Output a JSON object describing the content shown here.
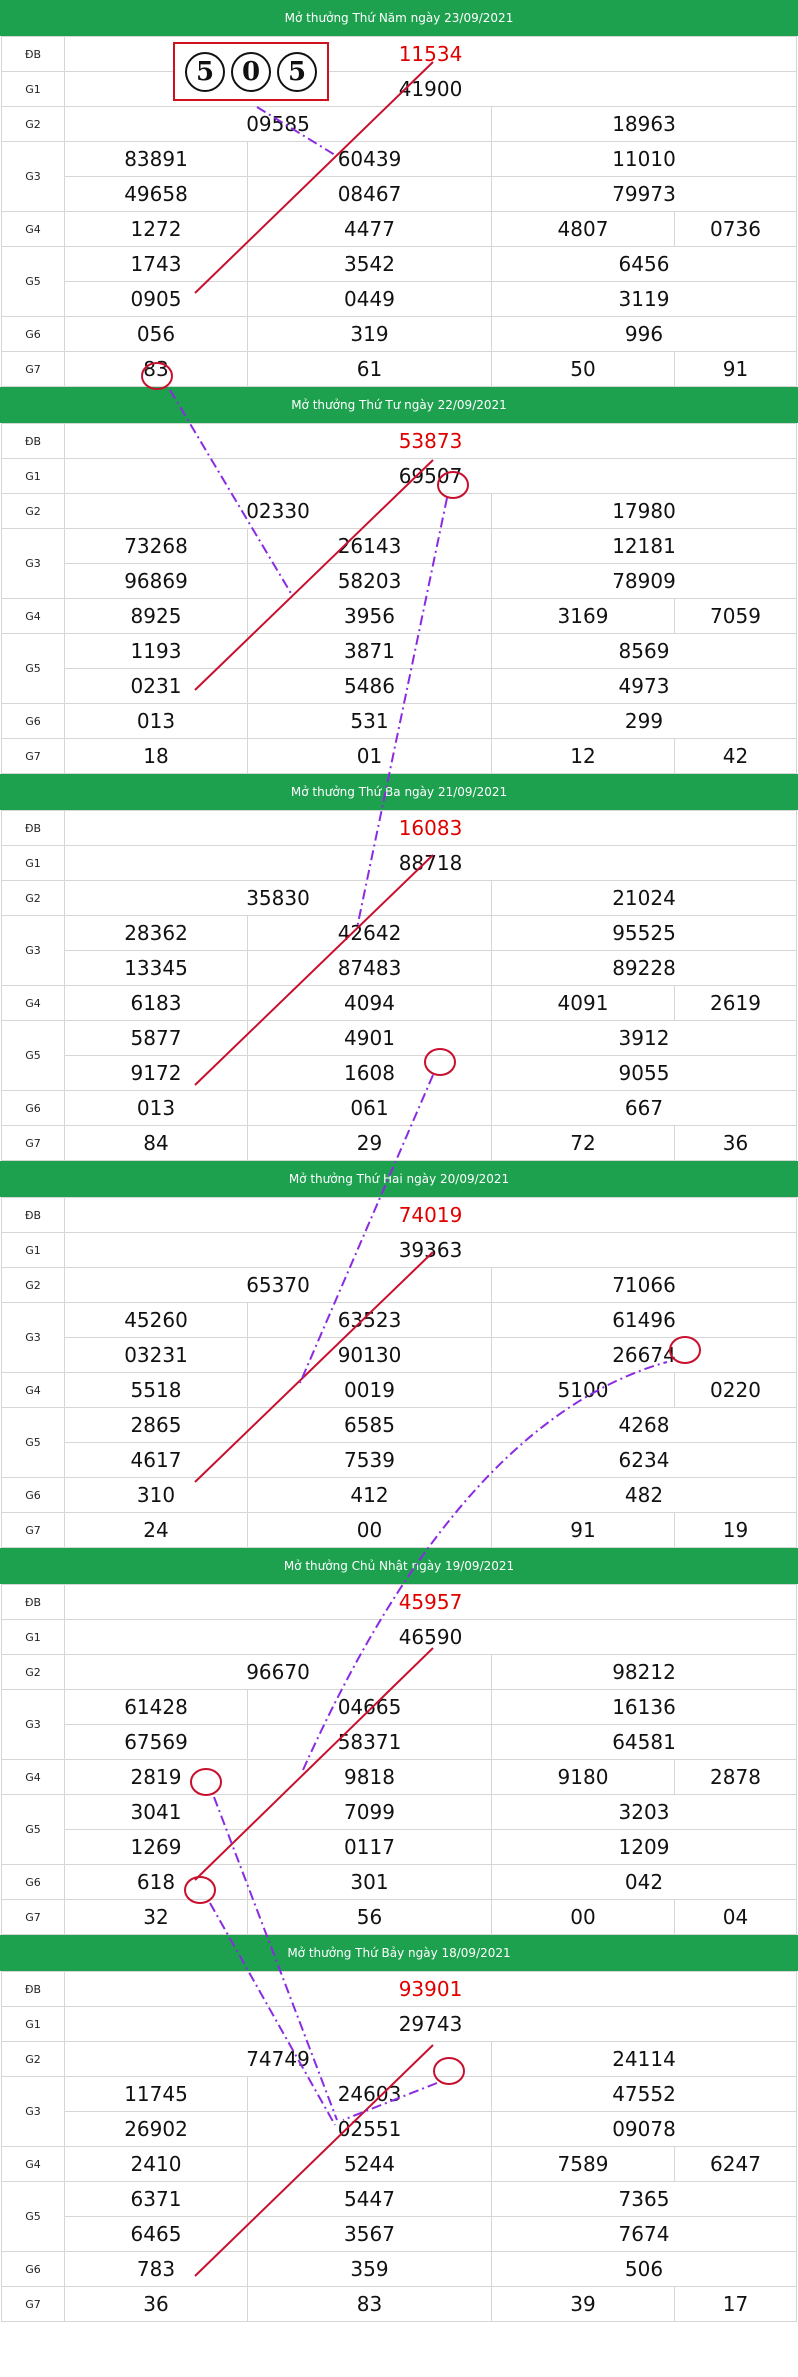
{
  "labels": {
    "db": "ĐB",
    "g1": "G1",
    "g2": "G2",
    "g3": "G3",
    "g4": "G4",
    "g5": "G5",
    "g6": "G6",
    "g7": "G7"
  },
  "dice": [
    "5",
    "0",
    "5"
  ],
  "draws": [
    {
      "title": "Mở thưởng Thứ Năm ngày 23/09/2021",
      "db": "11534",
      "g1": "41900",
      "g2": [
        "09585",
        "18963"
      ],
      "g3": [
        "83891",
        "60439",
        "11010",
        "49658",
        "08467",
        "79973"
      ],
      "g4": [
        "1272",
        "4477",
        "4807",
        "0736"
      ],
      "g5": [
        "1743",
        "3542",
        "6456",
        "0905",
        "0449",
        "3119"
      ],
      "g6": [
        "056",
        "319",
        "996"
      ],
      "g7": [
        "83",
        "61",
        "50",
        "91"
      ]
    },
    {
      "title": "Mở thưởng Thứ Tư ngày 22/09/2021",
      "db": "53873",
      "g1": "69507",
      "g2": [
        "02330",
        "17980"
      ],
      "g3": [
        "73268",
        "26143",
        "12181",
        "96869",
        "58203",
        "78909"
      ],
      "g4": [
        "8925",
        "3956",
        "3169",
        "7059"
      ],
      "g5": [
        "1193",
        "3871",
        "8569",
        "0231",
        "5486",
        "4973"
      ],
      "g6": [
        "013",
        "531",
        "299"
      ],
      "g7": [
        "18",
        "01",
        "12",
        "42"
      ]
    },
    {
      "title": "Mở thưởng Thứ Ba ngày 21/09/2021",
      "db": "16083",
      "g1": "88718",
      "g2": [
        "35830",
        "21024"
      ],
      "g3": [
        "28362",
        "42642",
        "95525",
        "13345",
        "87483",
        "89228"
      ],
      "g4": [
        "6183",
        "4094",
        "4091",
        "2619"
      ],
      "g5": [
        "5877",
        "4901",
        "3912",
        "9172",
        "1608",
        "9055"
      ],
      "g6": [
        "013",
        "061",
        "667"
      ],
      "g7": [
        "84",
        "29",
        "72",
        "36"
      ]
    },
    {
      "title": "Mở thưởng Thứ Hai ngày 20/09/2021",
      "db": "74019",
      "g1": "39363",
      "g2": [
        "65370",
        "71066"
      ],
      "g3": [
        "45260",
        "63523",
        "61496",
        "03231",
        "90130",
        "26674"
      ],
      "g4": [
        "5518",
        "0019",
        "5100",
        "0220"
      ],
      "g5": [
        "2865",
        "6585",
        "4268",
        "4617",
        "7539",
        "6234"
      ],
      "g6": [
        "310",
        "412",
        "482"
      ],
      "g7": [
        "24",
        "00",
        "91",
        "19"
      ]
    },
    {
      "title": "Mở thưởng Chủ Nhật ngày 19/09/2021",
      "db": "45957",
      "g1": "46590",
      "g2": [
        "96670",
        "98212"
      ],
      "g3": [
        "61428",
        "04665",
        "16136",
        "67569",
        "58371",
        "64581"
      ],
      "g4": [
        "2819",
        "9818",
        "9180",
        "2878"
      ],
      "g5": [
        "3041",
        "7099",
        "3203",
        "1269",
        "0117",
        "1209"
      ],
      "g6": [
        "618",
        "301",
        "042"
      ],
      "g7": [
        "32",
        "56",
        "00",
        "04"
      ]
    },
    {
      "title": "Mở thưởng Thứ Bảy ngày 18/09/2021",
      "db": "93901",
      "g1": "29743",
      "g2": [
        "74749",
        "24114"
      ],
      "g3": [
        "11745",
        "24603",
        "47552",
        "26902",
        "02551",
        "09078"
      ],
      "g4": [
        "2410",
        "5244",
        "7589",
        "6247"
      ],
      "g5": [
        "6371",
        "5447",
        "7365",
        "6465",
        "3567",
        "7674"
      ],
      "g6": [
        "783",
        "359",
        "506"
      ],
      "g7": [
        "36",
        "83",
        "39",
        "17"
      ]
    }
  ],
  "colors": {
    "header": "#1ea14f",
    "special": "#e00000",
    "red_line": "#c8102e",
    "dash_line": "#8a2be2"
  }
}
